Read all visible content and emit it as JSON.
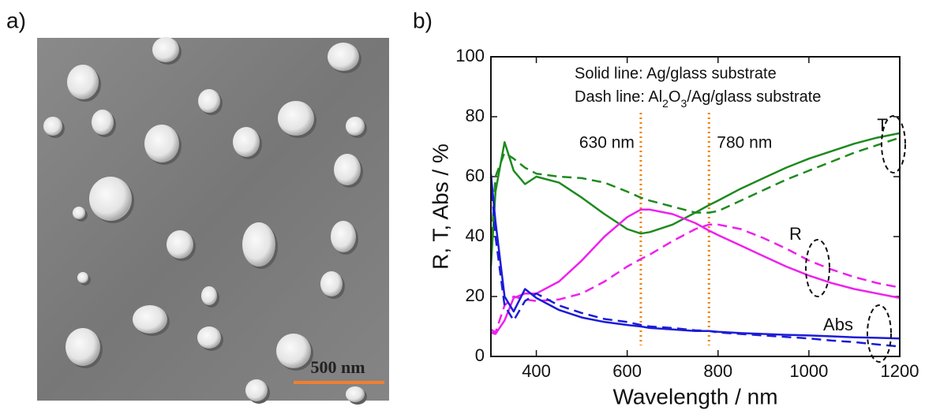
{
  "panels": {
    "a": {
      "label": "a)",
      "scale_bar": "500 nm"
    },
    "b": {
      "label": "b)"
    }
  },
  "chart_data": {
    "type": "line",
    "x_label": "Wavelength / nm",
    "y_label": "R, T, Abs / %",
    "notes": [
      "Solid line: Ag/glass substrate",
      [
        "Dash line: Al",
        "2",
        "O",
        "3",
        "/Ag/glass substrate"
      ]
    ],
    "curve_labels": [
      "T",
      "R",
      "Abs"
    ],
    "reference_lines": [
      {
        "value": 630,
        "label": "630 nm"
      },
      {
        "value": 780,
        "label": "780 nm"
      }
    ],
    "reference_color": "#f08000",
    "x": [
      300,
      310,
      330,
      350,
      375,
      400,
      450,
      500,
      550,
      600,
      630,
      650,
      700,
      750,
      780,
      800,
      850,
      900,
      950,
      1000,
      1050,
      1100,
      1150,
      1200
    ],
    "series": [
      {
        "color": "#1e8a1e",
        "dash": false,
        "values": [
          30,
          55,
          71.5,
          62,
          57.5,
          60,
          58,
          53,
          47.5,
          42.5,
          41,
          41.5,
          44,
          48,
          50.5,
          52,
          56,
          59.5,
          63,
          66,
          68.5,
          71,
          73,
          74.5
        ]
      },
      {
        "color": "#1e8a1e",
        "dash": true,
        "values": [
          35,
          60,
          68,
          66,
          63,
          61,
          60,
          59.5,
          58,
          55,
          53,
          52,
          50,
          48,
          48,
          48.5,
          52,
          55.5,
          59,
          62,
          65,
          68,
          70.5,
          73
        ]
      },
      {
        "color": "#ee20ee",
        "dash": false,
        "values": [
          8,
          7.5,
          12,
          19.5,
          21,
          21,
          25,
          32,
          40,
          46.5,
          49,
          49,
          47.5,
          44.5,
          42,
          40.5,
          37,
          33.5,
          30,
          27,
          24.5,
          22.5,
          21,
          19.5
        ]
      },
      {
        "color": "#ee20ee",
        "dash": true,
        "values": [
          9,
          8,
          17,
          20,
          19,
          18.5,
          19,
          21,
          25,
          30,
          32.5,
          34,
          38.5,
          42.5,
          44,
          44,
          42.5,
          39.5,
          36,
          32,
          29,
          26.5,
          24.5,
          23
        ]
      },
      {
        "color": "#1c1cd8",
        "dash": false,
        "values": [
          61,
          45,
          20,
          15,
          22.5,
          19.5,
          15.5,
          13,
          11.5,
          10.5,
          10,
          9.5,
          9,
          8.5,
          8.5,
          8.2,
          7.8,
          7.5,
          7.2,
          7,
          6.7,
          6.4,
          6.2,
          6
        ]
      },
      {
        "color": "#1c1cd8",
        "dash": true,
        "values": [
          60,
          40,
          17,
          12,
          18.5,
          21,
          17,
          14.5,
          12.5,
          11.5,
          10.5,
          10,
          9.5,
          8.7,
          8.5,
          8,
          7.5,
          7,
          6.5,
          6,
          5.3,
          4.8,
          4,
          3.3
        ]
      }
    ],
    "xlim": [
      300,
      1200
    ],
    "ylim": [
      0,
      100
    ],
    "xticks": [
      400,
      600,
      800,
      1000,
      1200
    ],
    "yticks": [
      0,
      20,
      40,
      60,
      80,
      100
    ]
  }
}
